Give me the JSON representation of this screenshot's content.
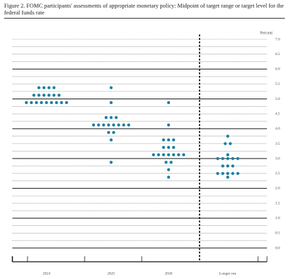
{
  "chart_data": {
    "type": "dot",
    "title": "Figure 2.  FOMC participants' assessments of appropriate monetary policy: Midpoint of target range or target level for the federal funds rate",
    "ylabel": "Percent",
    "color": "#1b7fa3",
    "ylim": [
      0,
      7
    ],
    "yticks": [
      {
        "value": 0,
        "label": "0.0"
      },
      {
        "value": 0.5,
        "label": "0.5"
      },
      {
        "value": 1,
        "label": "1.0"
      },
      {
        "value": 1.5,
        "label": "1.5"
      },
      {
        "value": 2,
        "label": "2.0"
      },
      {
        "value": 2.5,
        "label": "2.5"
      },
      {
        "value": 3,
        "label": "3.0"
      },
      {
        "value": 3.5,
        "label": "3.5"
      },
      {
        "value": 4,
        "label": "4.0"
      },
      {
        "value": 4.5,
        "label": "4.5"
      },
      {
        "value": 5,
        "label": "5.0"
      },
      {
        "value": 5.5,
        "label": "5.5"
      },
      {
        "value": 6,
        "label": "6.0"
      },
      {
        "value": 6.5,
        "label": "6.5"
      },
      {
        "value": 7,
        "label": "7.0"
      }
    ],
    "grid": true,
    "columns": [
      {
        "label": "2024",
        "rates": [
          5.375,
          5.125,
          4.875
        ],
        "counts": [
          4,
          6,
          9
        ]
      },
      {
        "label": "2025",
        "rates": [
          5.375,
          4.875,
          4.375,
          4.125,
          3.875,
          3.625,
          2.875
        ],
        "counts": [
          1,
          1,
          3,
          8,
          2,
          1,
          1
        ]
      },
      {
        "label": "2026",
        "rates": [
          4.875,
          4.125,
          3.625,
          3.375,
          3.125,
          2.875,
          2.625,
          2.375
        ],
        "counts": [
          1,
          1,
          3,
          3,
          7,
          2,
          1,
          1
        ]
      },
      {
        "label": "Longer run",
        "rates": [
          3.75,
          3.5,
          3.125,
          3.0,
          2.75,
          2.5,
          2.375
        ],
        "counts": [
          1,
          2,
          1,
          5,
          3,
          5,
          1
        ]
      }
    ]
  }
}
